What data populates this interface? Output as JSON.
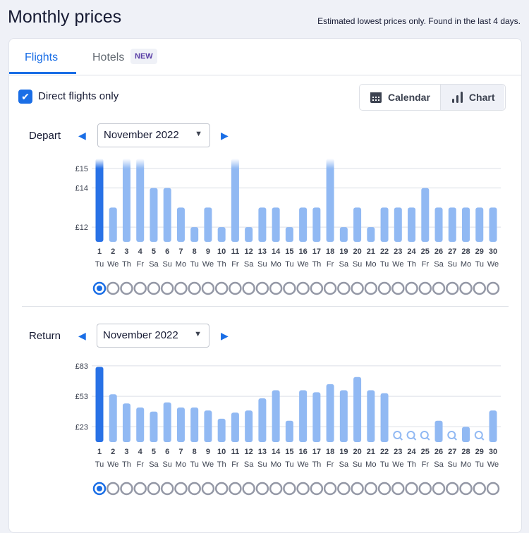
{
  "header": {
    "title": "Monthly prices",
    "note": "Estimated lowest prices only. Found in the last 4 days."
  },
  "tabs": [
    {
      "label": "Flights",
      "active": true
    },
    {
      "label": "Hotels",
      "badge": "NEW"
    }
  ],
  "filter": {
    "label": "Direct flights only",
    "checked": true
  },
  "view_toggle": {
    "calendar": "Calendar",
    "chart": "Chart",
    "selected": "Chart"
  },
  "colors": {
    "accent": "#1a6ee6",
    "bar": "#91b9f3",
    "selected_bar": "#2871e6",
    "radio": "#9498a6"
  },
  "chart_data": [
    {
      "type": "bar",
      "label": "Depart",
      "month": "November 2022",
      "ylim": [
        11.25,
        15.5
      ],
      "yticks": [
        "£12",
        "£14",
        "£15"
      ],
      "ytick_values": [
        12,
        14,
        15
      ],
      "days": [
        1,
        2,
        3,
        4,
        5,
        6,
        7,
        8,
        9,
        10,
        11,
        12,
        13,
        14,
        15,
        16,
        17,
        18,
        19,
        20,
        21,
        22,
        23,
        24,
        25,
        26,
        27,
        28,
        29,
        30
      ],
      "weekdays": [
        "Tu",
        "We",
        "Th",
        "Fr",
        "Sa",
        "Su",
        "Mo",
        "Tu",
        "We",
        "Th",
        "Fr",
        "Sa",
        "Su",
        "Mo",
        "Tu",
        "We",
        "Th",
        "Fr",
        "Sa",
        "Su",
        "Mo",
        "Tu",
        "We",
        "Th",
        "Fr",
        "Sa",
        "Su",
        "Mo",
        "Tu",
        "We"
      ],
      "values": [
        16,
        13,
        16,
        16,
        14,
        14,
        13,
        12,
        13,
        12,
        16,
        12,
        13,
        13,
        12,
        13,
        13,
        16,
        12,
        13,
        12,
        13,
        13,
        13,
        14,
        13,
        13,
        13,
        13,
        13
      ],
      "selected_day": 1
    },
    {
      "type": "bar",
      "label": "Return",
      "month": "November 2022",
      "ylim": [
        8,
        85
      ],
      "yticks": [
        "£23",
        "£53",
        "£83"
      ],
      "ytick_values": [
        23,
        53,
        83
      ],
      "days": [
        1,
        2,
        3,
        4,
        5,
        6,
        7,
        8,
        9,
        10,
        11,
        12,
        13,
        14,
        15,
        16,
        17,
        18,
        19,
        20,
        21,
        22,
        23,
        24,
        25,
        26,
        27,
        28,
        29,
        30
      ],
      "weekdays": [
        "Tu",
        "We",
        "Th",
        "Fr",
        "Sa",
        "Su",
        "Mo",
        "Tu",
        "We",
        "Th",
        "Fr",
        "Sa",
        "Su",
        "Mo",
        "Tu",
        "We",
        "Th",
        "Fr",
        "Sa",
        "Su",
        "Mo",
        "Tu",
        "We",
        "Th",
        "Fr",
        "Sa",
        "Su",
        "Mo",
        "Tu",
        "We"
      ],
      "values": [
        82,
        55,
        46,
        42,
        38,
        47,
        42,
        42,
        39,
        31,
        37,
        39,
        51,
        59,
        29,
        59,
        57,
        65,
        59,
        72,
        59,
        56,
        null,
        null,
        null,
        29,
        null,
        23,
        null,
        39
      ],
      "selected_day": 1
    }
  ]
}
